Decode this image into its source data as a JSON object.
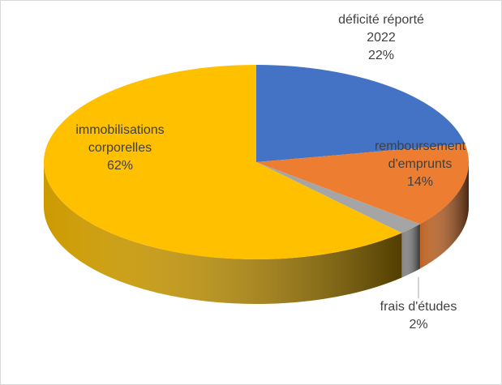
{
  "chart_data": {
    "type": "pie",
    "view": "3d",
    "categories": [
      "déficité réporté 2022",
      "remboursement d'emprunts",
      "frais d'études",
      "immobilisations corporelles"
    ],
    "values": [
      22,
      14,
      2,
      62
    ],
    "value_labels": [
      "22%",
      "14%",
      "2%",
      "62%"
    ],
    "colors": [
      "#4472c4",
      "#ed7d31",
      "#a5a5a5",
      "#ffc000"
    ]
  }
}
